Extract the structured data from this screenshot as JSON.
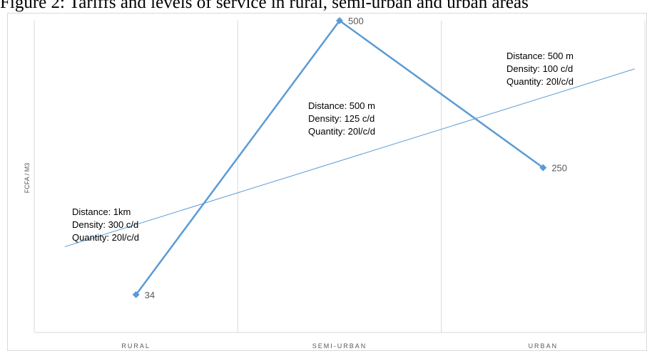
{
  "title": "Figure 2: Tariffs and levels of service in rural, semi-urban and urban areas",
  "chart_data": {
    "type": "line",
    "title": "",
    "ylabel": "FCFA / M3",
    "xlabel": "",
    "categories": [
      "RURAL",
      "SEMI-URBAN",
      "URBAN"
    ],
    "ylim": [
      0,
      500
    ],
    "grid": "vertical",
    "series": [
      {
        "name": "",
        "values": [
          34,
          500,
          250
        ],
        "data_labels": [
          "34",
          "500",
          "250"
        ],
        "color": "#5b9bd5"
      }
    ],
    "trendline": {
      "type": "linear",
      "color": "#5b9bd5"
    },
    "annotations": [
      {
        "category": "RURAL",
        "lines": [
          "Distance: 1km",
          "Density: 300 c/d",
          "Quantity: 20l/c/d"
        ]
      },
      {
        "category": "SEMI-URBAN",
        "lines": [
          "Distance: 500 m",
          "Density: 125 c/d",
          "Quantity: 20l/c/d"
        ]
      },
      {
        "category": "URBAN",
        "lines": [
          "Distance: 500 m",
          "Density: 100 c/d",
          "Quantity: 20l/c/d"
        ]
      }
    ]
  }
}
